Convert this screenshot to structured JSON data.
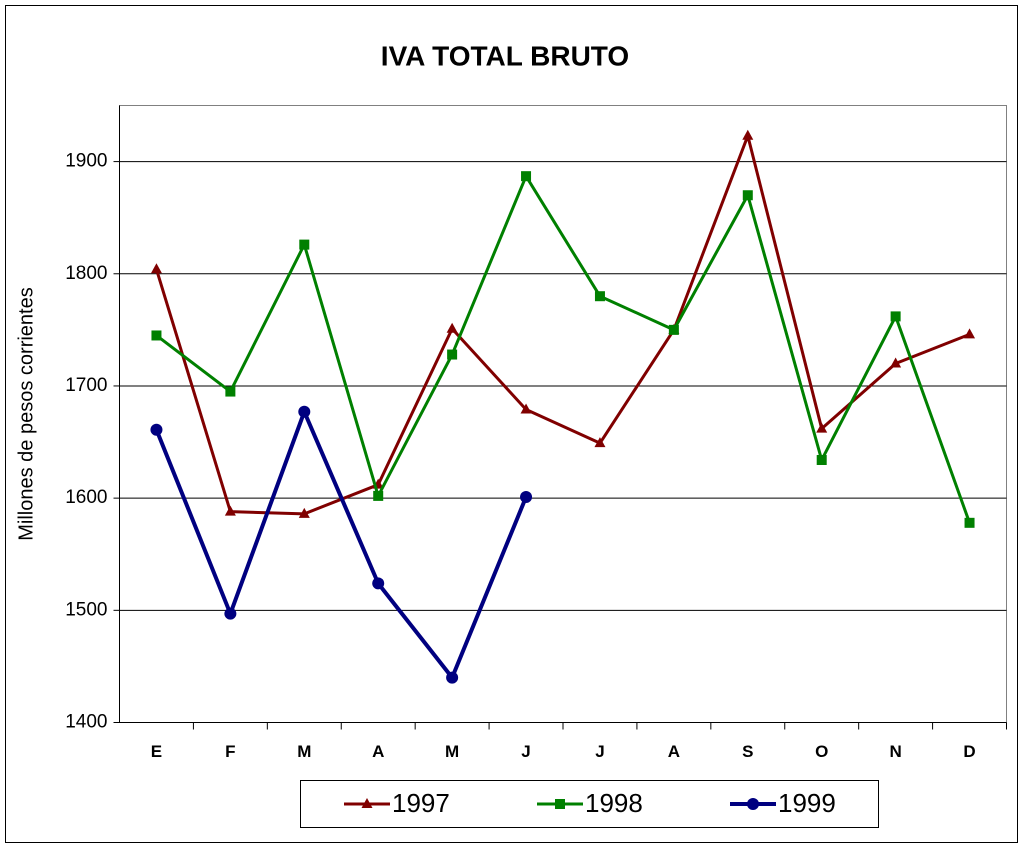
{
  "chart_data": {
    "type": "line",
    "title": "IVA TOTAL BRUTO",
    "y_label": "Millones de pesos corrientes",
    "categories": [
      "E",
      "F",
      "M",
      "A",
      "M",
      "J",
      "J",
      "A",
      "S",
      "O",
      "N",
      "D"
    ],
    "series": [
      {
        "name": "1997",
        "color": "#800000",
        "marker": "triangle",
        "values": [
          1804,
          1588,
          1586,
          1612,
          1751,
          1679,
          1649,
          1750,
          1923,
          1662,
          1720,
          1746
        ]
      },
      {
        "name": "1998",
        "color": "#008000",
        "marker": "square",
        "values": [
          1745,
          1695,
          1826,
          1602,
          1728,
          1887,
          1780,
          1750,
          1870,
          1634,
          1762,
          1578
        ]
      },
      {
        "name": "1999",
        "color": "#000080",
        "marker": "circle",
        "values": [
          1661,
          1497,
          1677,
          1524,
          1440,
          1601,
          null,
          null,
          null,
          null,
          null,
          null
        ]
      }
    ],
    "ylim": [
      1400,
      1950
    ],
    "yticks": [
      1400,
      1500,
      1600,
      1700,
      1800,
      1900
    ],
    "grid": true,
    "legend": "bottom"
  }
}
